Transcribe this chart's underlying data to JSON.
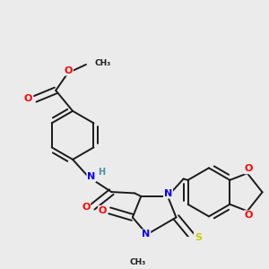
{
  "background_color": "#ebebeb",
  "figsize": [
    3.0,
    3.0
  ],
  "dpi": 100,
  "atom_colors": {
    "C": "#1a1a1a",
    "N": "#0000ff",
    "O": "#ff0000",
    "S": "#cccc00",
    "H": "#4a8fa8"
  },
  "bond_color": "#1a1a1a",
  "bond_width": 1.4
}
